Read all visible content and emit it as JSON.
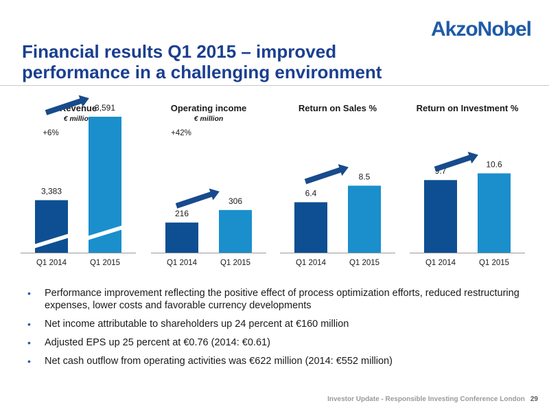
{
  "logo": "AkzoNobel",
  "title_line1": "Financial results Q1 2015 – improved",
  "title_line2": "performance in a challenging environment",
  "colors": {
    "q1_2014": "#0d4f92",
    "q1_2015": "#1a8fcc",
    "arrow": "#174b8c",
    "title": "#1a3f8f"
  },
  "chart_data": [
    {
      "type": "bar",
      "title": "Revenue",
      "unit": "€ million",
      "growth": "+6%",
      "categories": [
        "Q1 2014",
        "Q1 2015"
      ],
      "values": [
        3383,
        3591
      ],
      "labels": [
        "3,383",
        "3,591"
      ],
      "broken_axis": true
    },
    {
      "type": "bar",
      "title": "Operating income",
      "unit": "€ million",
      "growth": "+42%",
      "categories": [
        "Q1 2014",
        "Q1 2015"
      ],
      "values": [
        216,
        306
      ],
      "labels": [
        "216",
        "306"
      ]
    },
    {
      "type": "bar",
      "title": "Return on Sales %",
      "unit": "",
      "growth": "",
      "categories": [
        "Q1 2014",
        "Q1 2015"
      ],
      "values": [
        6.4,
        8.5
      ],
      "labels": [
        "6.4",
        "8.5"
      ]
    },
    {
      "type": "bar",
      "title": "Return on Investment %",
      "unit": "",
      "growth": "",
      "categories": [
        "Q1 2014",
        "Q1 2015"
      ],
      "values": [
        9.7,
        10.6
      ],
      "labels": [
        "9.7",
        "10.6"
      ]
    }
  ],
  "bullets": [
    "Performance improvement reflecting the positive effect of process optimization efforts, reduced restructuring expenses, lower costs and favorable currency developments",
    "Net income attributable to shareholders up 24 percent at €160 million",
    "Adjusted EPS up 25 percent at €0.76 (2014: €0.61)",
    "Net cash outflow from operating activities was €622 million (2014: €552 million)"
  ],
  "footer": "Investor Update - Responsible Investing Conference London",
  "page_number": "29"
}
